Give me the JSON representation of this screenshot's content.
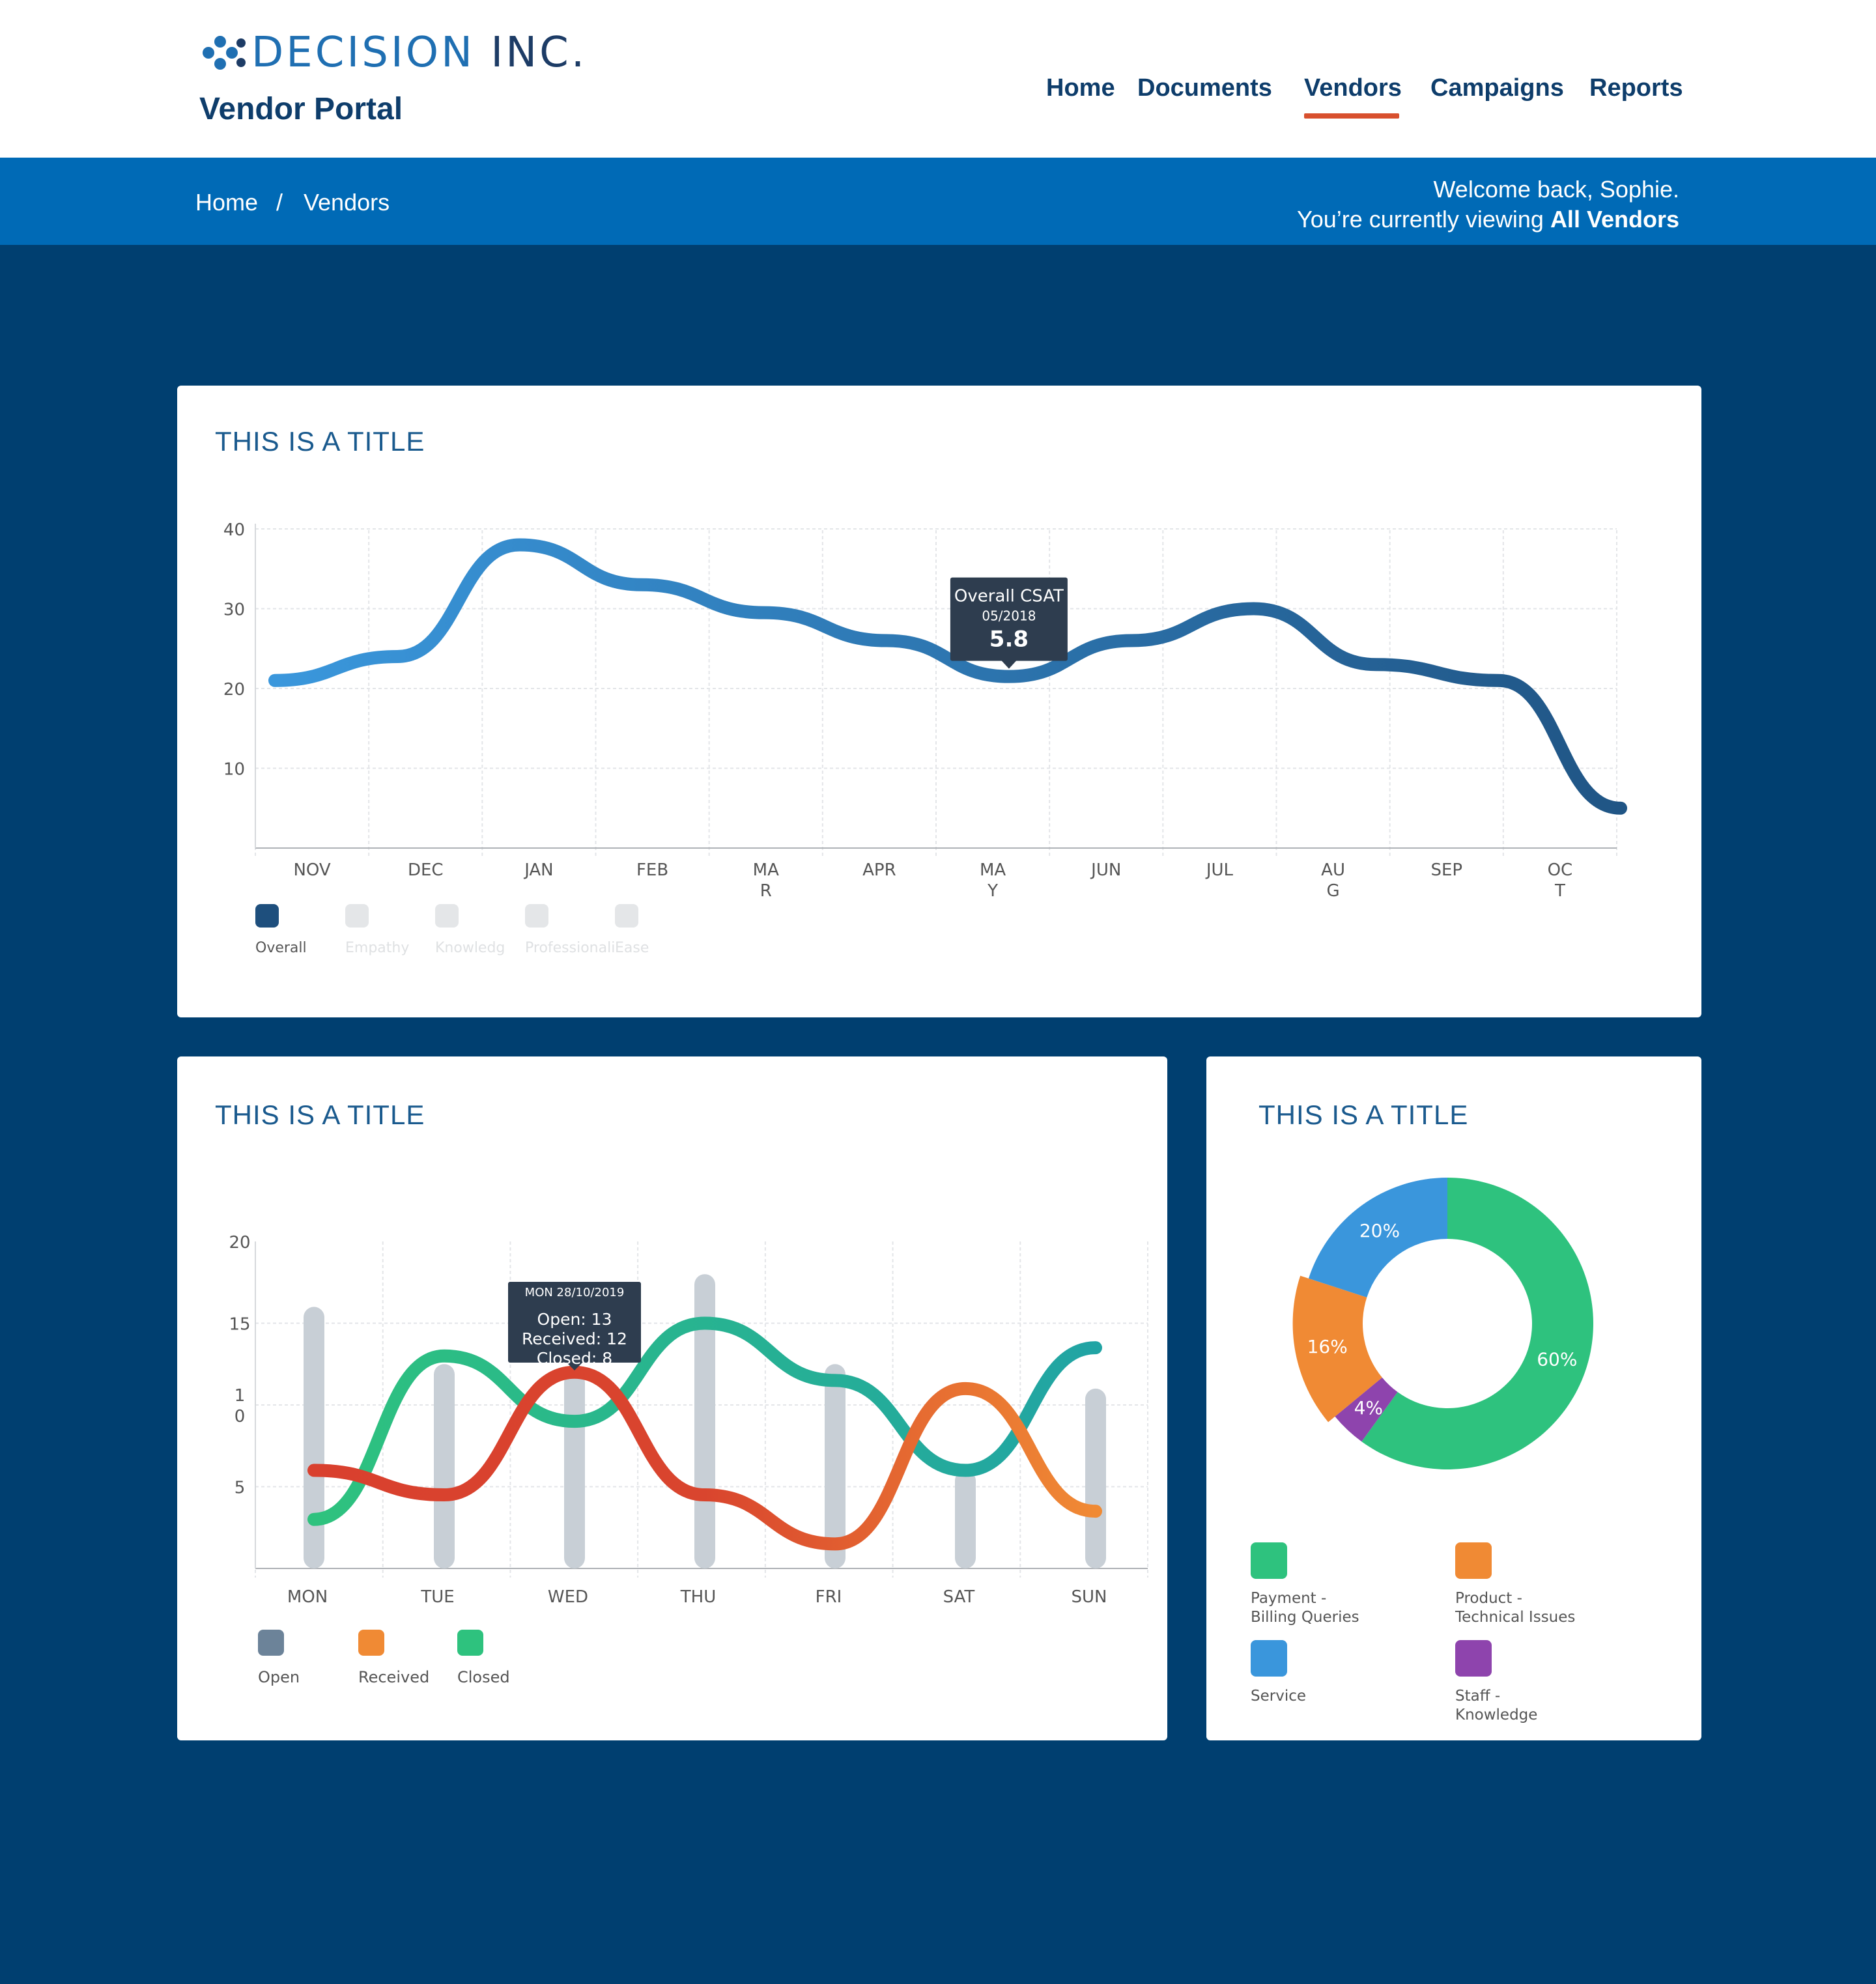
{
  "header": {
    "logo_word": "DECISION",
    "logo_suffix": "INC.",
    "portal_title": "Vendor Portal",
    "nav": [
      {
        "label": "Home",
        "active": false
      },
      {
        "label": "Documents",
        "active": false
      },
      {
        "label": "Vendors",
        "active": true
      },
      {
        "label": "Campaigns",
        "active": false
      },
      {
        "label": "Reports",
        "active": false
      }
    ],
    "accent_color": "#d8502e"
  },
  "breadcrumb": {
    "items": [
      "Home",
      "Vendors"
    ],
    "separator": "/",
    "welcome_line1": "Welcome back, Sophie.",
    "welcome_line2_prefix": "You’re currently viewing",
    "welcome_line2_bold": "All Vendors"
  },
  "colors": {
    "page_bg": "#003f70",
    "crumb_bg": "#006ab6",
    "title_color": "#1a5a8e"
  },
  "card1": {
    "title": "THIS IS A TITLE",
    "tooltip": {
      "title": "Overall CSAT",
      "date": "05/2018",
      "value": "5.8"
    },
    "legend": [
      {
        "label": "Overall",
        "color": "#1e4f7d",
        "active": true
      },
      {
        "label": "Empathy",
        "color": "#e4e6e8",
        "active": false
      },
      {
        "label": "Knowledg",
        "color": "#e4e6e8",
        "active": false
      },
      {
        "label": "Professionali",
        "color": "#e4e6e8",
        "active": false
      },
      {
        "label": "Ease",
        "color": "#e4e6e8",
        "active": false
      }
    ]
  },
  "card2": {
    "title": "THIS IS A TITLE",
    "tooltip": {
      "date": "MON 28/10/2019",
      "lines": [
        "Open: 13",
        "Received: 12",
        "Closed: 8"
      ]
    },
    "legend": [
      {
        "label": "Open",
        "color": "#6c8399"
      },
      {
        "label": "Received",
        "color": "#f08a34"
      },
      {
        "label": "Closed",
        "color": "#2ec27e"
      }
    ]
  },
  "card3": {
    "title": "THIS IS A TITLE",
    "legend": [
      {
        "label_line1": "Payment -",
        "label_line2": "Billing Queries",
        "color": "#2ec27e"
      },
      {
        "label_line1": "Product -",
        "label_line2": "Technical Issues",
        "color": "#f08a34"
      },
      {
        "label_line1": "Service",
        "label_line2": "",
        "color": "#3a96dc"
      },
      {
        "label_line1": "Staff -",
        "label_line2": "Knowledge",
        "color": "#8e44ad"
      }
    ]
  },
  "chart_data": [
    {
      "type": "line",
      "title": "THIS IS A TITLE",
      "categories": [
        "NOV",
        "DEC",
        "JAN",
        "FEB",
        "MA\nR",
        "APR",
        "MA\nY",
        "JUN",
        "JUL",
        "AU\nG",
        "SEP",
        "OC\nT"
      ],
      "series": [
        {
          "name": "Overall",
          "values": [
            21,
            24,
            38,
            33,
            29.5,
            26,
            21.5,
            26,
            30,
            23,
            21,
            5
          ]
        }
      ],
      "yticks": [
        10,
        20,
        30,
        40
      ],
      "ylim": [
        0,
        40
      ],
      "gradient": [
        "#3a97dc",
        "#205585"
      ],
      "grid": true
    },
    {
      "type": "line",
      "title": "THIS IS A TITLE",
      "categories": [
        "MON",
        "TUE",
        "WED",
        "THU",
        "FRI",
        "SAT",
        "SUN"
      ],
      "ylim": [
        0,
        20
      ],
      "yticks": [
        "5",
        "1\n0",
        "15",
        "20"
      ],
      "bars": {
        "name": "Open",
        "values": [
          16,
          12.5,
          12,
          18,
          12.5,
          6,
          11
        ]
      },
      "series": [
        {
          "name": "Received",
          "values": [
            6,
            4.5,
            12,
            4.5,
            1.5,
            11,
            3.5
          ],
          "gradient": [
            "#d9402e",
            "#f08a34"
          ]
        },
        {
          "name": "Closed",
          "values": [
            3,
            13,
            9,
            15,
            11.5,
            6,
            13.5
          ],
          "gradient": [
            "#2ec27e",
            "#21a4a4"
          ]
        }
      ],
      "grid": true
    },
    {
      "type": "pie",
      "title": "THIS IS A TITLE",
      "slices": [
        {
          "label": "Payment - Billing Queries",
          "value": 60,
          "text": "60%",
          "color": "#2ec27e"
        },
        {
          "label": "Staff - Knowledge",
          "value": 4,
          "text": "4%",
          "color": "#8e44ad"
        },
        {
          "label": "Product - Technical Issues",
          "value": 16,
          "text": "16%",
          "color": "#f08a34"
        },
        {
          "label": "Service",
          "value": 20,
          "text": "20%",
          "color": "#3a96dc"
        }
      ]
    }
  ]
}
